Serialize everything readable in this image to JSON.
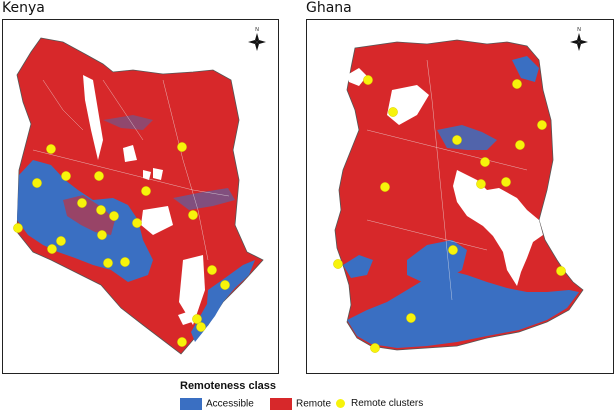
{
  "panels": [
    {
      "title": "Kenya"
    },
    {
      "title": "Ghana"
    }
  ],
  "north_arrow_label": "N",
  "legend": {
    "title": "Remoteness class",
    "items": [
      {
        "label": "Accessible",
        "color": "#3a6fc2",
        "shape": "rect"
      },
      {
        "label": "Remote",
        "color": "#d7282a",
        "shape": "rect"
      },
      {
        "label": "Remote clusters",
        "color": "#f7f30b",
        "shape": "dot"
      }
    ]
  },
  "colors": {
    "accessible": "#3a6fc2",
    "remote": "#d7282a",
    "cluster": "#f7f30b"
  }
}
